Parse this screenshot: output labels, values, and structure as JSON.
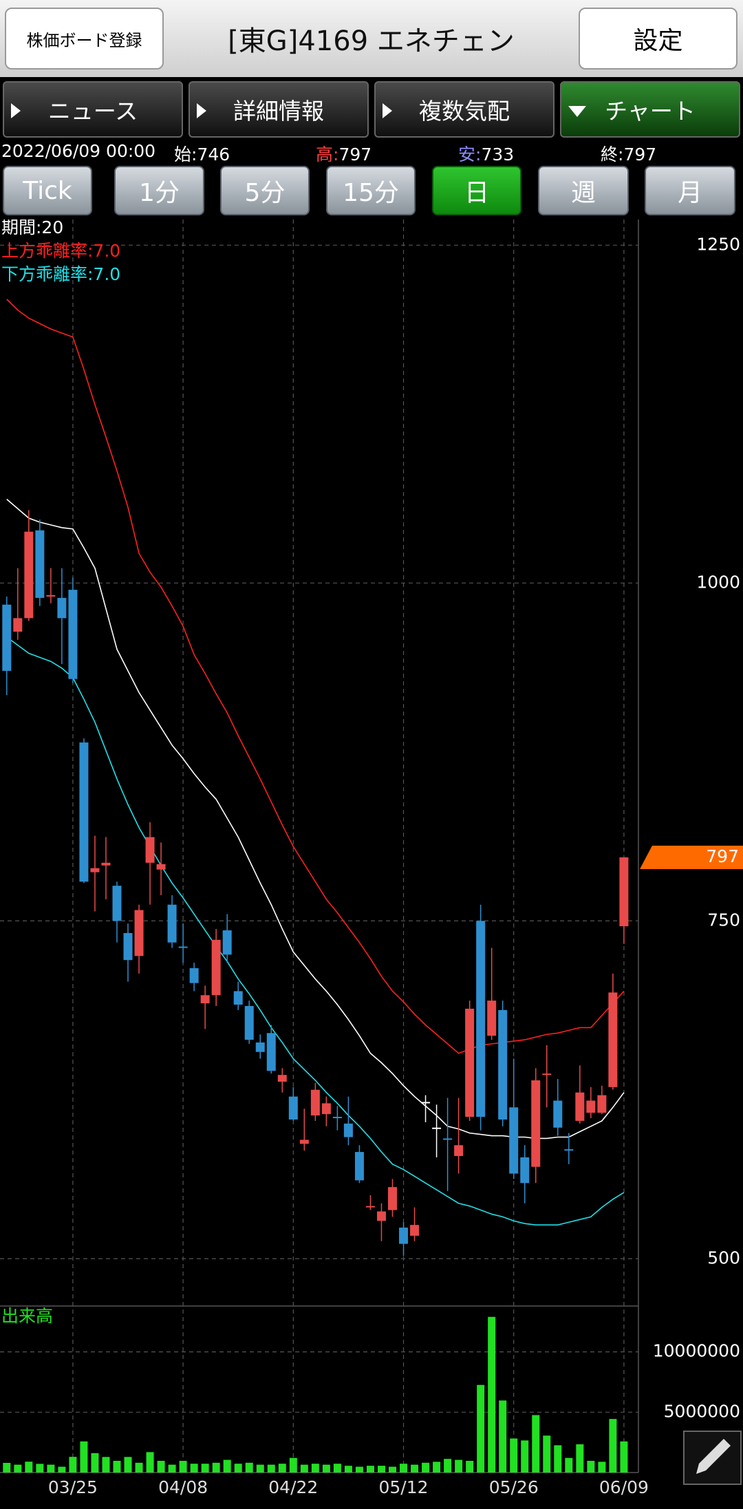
{
  "header": {
    "register_button": "株価ボード登録",
    "title": "[東G]4169 エネチェン",
    "settings_button": "設定"
  },
  "tabs": [
    "ニュース",
    "詳細情報",
    "複数気配",
    "チャート"
  ],
  "quote": {
    "datetime": "2022/06/09 00:00",
    "fields": [
      {
        "label": "始:",
        "value": 746
      },
      {
        "label": "高:",
        "value": 797
      },
      {
        "label": "安:",
        "value": 733
      },
      {
        "label": "終:",
        "value": 797
      }
    ]
  },
  "periods": [
    "Tick",
    "1分",
    "5分",
    "15分",
    "日",
    "週",
    "月"
  ],
  "active_period": 4,
  "chart_data": [
    {
      "type": "candlestick",
      "categories": [
        null,
        null,
        null,
        null,
        null,
        null,
        "03/25",
        null,
        null,
        null,
        null,
        null,
        null,
        null,
        null,
        null,
        "04/08",
        null,
        null,
        null,
        null,
        null,
        null,
        null,
        null,
        null,
        "04/22",
        null,
        null,
        null,
        null,
        null,
        null,
        null,
        null,
        null,
        "05/12",
        null,
        null,
        null,
        null,
        null,
        null,
        null,
        null,
        null,
        "05/26",
        null,
        null,
        null,
        null,
        null,
        null,
        null,
        null,
        null,
        "06/09"
      ],
      "open": [
        984,
        964,
        974,
        1039,
        990,
        989,
        995,
        882,
        786,
        791,
        776,
        741,
        724,
        793,
        788,
        762,
        731,
        715,
        689,
        695,
        743,
        698,
        687,
        660,
        667,
        631,
        620,
        585,
        606,
        607,
        605,
        600,
        579,
        538,
        528,
        536,
        523,
        517,
        616,
        597,
        589,
        576,
        605,
        750,
        665,
        684,
        612,
        575,
        568,
        636,
        617,
        581,
        602,
        608,
        608,
        627,
        746
      ],
      "high": [
        990,
        1011,
        1054,
        1047,
        1011,
        1011,
        1004,
        885,
        813,
        812,
        779,
        748,
        762,
        823,
        808,
        769,
        748,
        719,
        702,
        744,
        755,
        705,
        691,
        666,
        673,
        641,
        627,
        611,
        630,
        620,
        613,
        620,
        584,
        547,
        541,
        559,
        527,
        538,
        621,
        614,
        619,
        619,
        691,
        762,
        730,
        691,
        648,
        584,
        641,
        658,
        633,
        593,
        643,
        627,
        628,
        711,
        797
      ],
      "low": [
        917,
        958,
        972,
        983,
        985,
        940,
        926,
        778,
        757,
        766,
        734,
        705,
        711,
        762,
        769,
        730,
        719,
        698,
        670,
        687,
        719,
        684,
        659,
        648,
        637,
        623,
        602,
        580,
        602,
        598,
        595,
        584,
        556,
        536,
        513,
        531,
        502,
        513,
        601,
        575,
        550,
        563,
        602,
        595,
        662,
        598,
        559,
        541,
        556,
        612,
        591,
        570,
        600,
        604,
        607,
        625,
        733
      ],
      "close": [
        935,
        974,
        1038,
        989,
        991,
        974,
        929,
        779,
        789,
        793,
        750,
        721,
        758,
        812,
        792,
        734,
        730,
        704,
        695,
        736,
        725,
        688,
        662,
        653,
        639,
        636,
        603,
        588,
        625,
        615,
        604,
        590,
        558,
        539,
        535,
        553,
        511,
        525,
        616,
        597,
        588,
        584,
        685,
        605,
        691,
        603,
        563,
        556,
        632,
        637,
        597,
        580,
        623,
        617,
        621,
        697,
        797
      ],
      "up_color": "#e84a4a",
      "down_color": "#2e8fd0",
      "doji_color": "#ffffff",
      "series": [
        {
          "name": "期間:20",
          "color": "#ffffff",
          "values": [
            1062,
            1055,
            1048,
            1045,
            1043,
            1041,
            1040,
            1026,
            1011,
            981,
            951,
            935,
            919,
            906,
            893,
            880,
            870,
            859,
            849,
            840,
            826,
            812,
            795,
            778,
            762,
            744,
            727,
            717,
            707,
            698,
            688,
            677,
            665,
            652,
            645,
            637,
            628,
            620,
            613,
            606,
            598,
            596,
            593,
            592,
            591,
            591,
            590,
            590,
            589,
            589,
            590,
            590,
            594,
            598,
            602,
            612,
            623
          ]
        },
        {
          "name": "上方乖離率:7.0",
          "color": "#ff2020",
          "values": [
            1210,
            1202,
            1196,
            1192,
            1188,
            1185,
            1182,
            1158,
            1132,
            1108,
            1083,
            1056,
            1022,
            1008,
            997,
            983,
            968,
            947,
            933,
            918,
            904,
            887,
            871,
            855,
            838,
            821,
            805,
            792,
            779,
            766,
            756,
            745,
            734,
            722,
            709,
            698,
            690,
            681,
            673,
            666,
            659,
            652,
            655,
            658,
            659,
            660,
            661,
            662,
            664,
            666,
            667,
            669,
            671,
            671,
            680,
            689,
            698
          ]
        },
        {
          "name": "下方乖離率:7.0",
          "color": "#20e0e8",
          "values": [
            960,
            954,
            948,
            945,
            942,
            937,
            930,
            914,
            897,
            876,
            855,
            836,
            819,
            805,
            791,
            778,
            767,
            755,
            743,
            731,
            720,
            707,
            696,
            684,
            671,
            660,
            648,
            640,
            632,
            623,
            615,
            606,
            598,
            589,
            579,
            570,
            566,
            561,
            556,
            551,
            546,
            541,
            539,
            536,
            533,
            531,
            528,
            526,
            525,
            525,
            525,
            527,
            529,
            531,
            538,
            544,
            549
          ]
        }
      ],
      "ylim": [
        465,
        1269
      ],
      "yticks": [
        500,
        750,
        1000,
        1250
      ],
      "grid": true,
      "last_price": 797,
      "last_price_color": "#ff6a00"
    },
    {
      "type": "bar",
      "title": "出来高",
      "color": "#22e022",
      "values": [
        800000,
        650000,
        900000,
        720000,
        650000,
        480000,
        1300000,
        2580000,
        1610000,
        1290000,
        970000,
        1290000,
        810000,
        1690000,
        970000,
        650000,
        970000,
        730000,
        730000,
        810000,
        1050000,
        730000,
        810000,
        650000,
        650000,
        730000,
        1210000,
        650000,
        730000,
        650000,
        730000,
        560000,
        480000,
        560000,
        560000,
        480000,
        730000,
        650000,
        810000,
        890000,
        1130000,
        1050000,
        970000,
        7260000,
        12900000,
        5970000,
        2820000,
        2660000,
        4760000,
        3060000,
        2260000,
        1210000,
        2340000,
        970000,
        890000,
        4440000,
        2580000
      ],
      "ylim": [
        0,
        13800000
      ],
      "yticks": [
        5000000,
        10000000
      ],
      "grid": true
    }
  ]
}
